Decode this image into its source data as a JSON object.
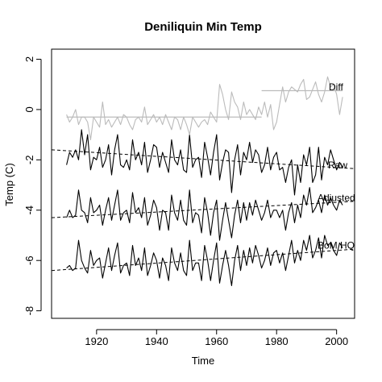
{
  "chart_data": {
    "type": "line",
    "title": "Deniliquin Min Temp",
    "xlabel": "Time",
    "ylabel": "Temp (C)",
    "xlim": [
      1905,
      2006
    ],
    "ylim": [
      -8.3,
      2.4
    ],
    "xticks": [
      1920,
      1940,
      1960,
      1980,
      2000
    ],
    "yticks": [
      -8,
      -6,
      -4,
      -2,
      0,
      2
    ],
    "grid": false,
    "legend": "none",
    "x_start": 1910,
    "x_end": 2002,
    "series": [
      {
        "name": "Raw",
        "color": "#000000",
        "values": [
          -2.2,
          -1.7,
          -1.9,
          -1.6,
          -2.0,
          -0.8,
          -1.8,
          -1.0,
          -2.4,
          -1.9,
          -2.0,
          -1.5,
          -2.3,
          -2.0,
          -1.4,
          -2.6,
          -1.6,
          -1.0,
          -2.2,
          -2.3,
          -2.0,
          -2.4,
          -1.2,
          -2.0,
          -1.7,
          -2.2,
          -1.3,
          -2.5,
          -2.0,
          -1.4,
          -1.5,
          -2.3,
          -1.7,
          -2.1,
          -2.5,
          -1.2,
          -2.0,
          -2.2,
          -1.6,
          -2.4,
          -2.5,
          -1.0,
          -2.3,
          -2.0,
          -1.9,
          -2.7,
          -1.3,
          -1.9,
          -2.6,
          -1.7,
          -1.0,
          -2.8,
          -2.1,
          -1.6,
          -1.7,
          -3.3,
          -2.0,
          -1.4,
          -2.6,
          -1.7,
          -2.0,
          -1.3,
          -2.1,
          -1.6,
          -1.8,
          -2.5,
          -2.2,
          -1.5,
          -2.4,
          -1.9,
          -1.7,
          -2.4,
          -2.3,
          -2.9,
          -2.3,
          -2.0,
          -3.4,
          -2.2,
          -2.9,
          -1.8,
          -2.2,
          -1.5,
          -2.9,
          -2.6,
          -1.5,
          -2.8,
          -1.9,
          -2.2,
          -1.6,
          -2.0,
          -2.4,
          -2.1,
          -2.3
        ],
        "trend": [
          -1.6,
          -2.35
        ]
      },
      {
        "name": "Adjusted",
        "color": "#000000",
        "values": [
          -4.3,
          -4.0,
          -4.3,
          -4.2,
          -3.2,
          -4.0,
          -4.1,
          -4.5,
          -3.5,
          -4.1,
          -4.0,
          -3.8,
          -4.6,
          -4.0,
          -3.5,
          -4.4,
          -3.8,
          -3.2,
          -4.4,
          -4.1,
          -4.0,
          -4.5,
          -3.3,
          -4.1,
          -3.9,
          -4.3,
          -3.5,
          -4.6,
          -4.2,
          -3.6,
          -3.9,
          -4.8,
          -4.0,
          -4.1,
          -4.8,
          -3.4,
          -4.1,
          -4.4,
          -3.6,
          -4.4,
          -4.6,
          -3.2,
          -4.5,
          -4.1,
          -4.2,
          -4.9,
          -3.5,
          -4.1,
          -5.0,
          -4.1,
          -3.6,
          -5.2,
          -4.4,
          -3.7,
          -4.4,
          -5.1,
          -4.2,
          -3.6,
          -4.5,
          -3.7,
          -4.4,
          -3.7,
          -4.2,
          -3.6,
          -4.0,
          -4.4,
          -4.1,
          -3.6,
          -4.3,
          -4.0,
          -4.0,
          -4.3,
          -4.0,
          -4.8,
          -4.1,
          -3.7,
          -4.5,
          -3.8,
          -4.3,
          -3.4,
          -3.8,
          -3.1,
          -4.1,
          -3.9,
          -3.6,
          -4.1,
          -3.4,
          -3.8,
          -3.5,
          -3.8,
          -4.0,
          -3.6,
          -3.8
        ],
        "trend": [
          -4.3,
          -3.65
        ]
      },
      {
        "name": "BoM HQ",
        "color": "#000000",
        "values": [
          -6.3,
          -6.2,
          -6.4,
          -6.3,
          -5.2,
          -6.0,
          -6.3,
          -6.5,
          -5.6,
          -6.2,
          -6.0,
          -5.9,
          -6.7,
          -6.1,
          -5.5,
          -6.4,
          -5.8,
          -5.3,
          -6.5,
          -6.2,
          -6.1,
          -6.6,
          -5.4,
          -6.2,
          -5.9,
          -6.4,
          -5.5,
          -6.6,
          -6.2,
          -5.7,
          -6.0,
          -6.7,
          -5.9,
          -6.2,
          -6.8,
          -5.5,
          -6.1,
          -6.4,
          -5.7,
          -6.4,
          -6.6,
          -5.2,
          -6.4,
          -6.1,
          -6.1,
          -6.8,
          -5.4,
          -6.0,
          -6.8,
          -6.0,
          -5.3,
          -6.9,
          -6.2,
          -5.6,
          -6.2,
          -7.0,
          -6.0,
          -5.4,
          -6.4,
          -5.6,
          -6.2,
          -5.5,
          -6.1,
          -5.4,
          -5.8,
          -6.3,
          -6.0,
          -5.5,
          -6.2,
          -5.7,
          -5.6,
          -6.1,
          -5.7,
          -6.4,
          -5.8,
          -5.2,
          -6.1,
          -5.6,
          -6.0,
          -5.2,
          -5.6,
          -5.0,
          -5.9,
          -5.6,
          -5.1,
          -5.9,
          -5.0,
          -5.4,
          -5.3,
          -5.6,
          -5.8,
          -5.3,
          -5.5
        ],
        "trend": [
          -6.4,
          -5.55
        ]
      },
      {
        "name": "Diff",
        "color": "#bbbbbb",
        "values": [
          -0.2,
          -0.5,
          -0.3,
          0.0,
          -0.6,
          -0.3,
          -0.3,
          -0.5,
          -1.2,
          -0.3,
          -0.5,
          -0.7,
          0.3,
          -0.6,
          -0.4,
          -0.7,
          -0.5,
          -0.3,
          -0.6,
          -0.2,
          -0.3,
          -0.6,
          -0.8,
          -0.4,
          -0.3,
          -0.5,
          0.1,
          -0.6,
          -0.4,
          -0.2,
          -0.5,
          -0.3,
          -0.6,
          -0.2,
          -0.5,
          -0.8,
          -0.3,
          -0.4,
          -0.8,
          -0.3,
          -0.6,
          -1.0,
          -0.3,
          -0.5,
          -0.7,
          -0.5,
          -0.4,
          -0.6,
          -0.1,
          -0.3,
          -0.5,
          1.0,
          0.6,
          0.0,
          -0.4,
          0.7,
          0.3,
          0.1,
          -0.4,
          0.3,
          -0.2,
          0.0,
          -0.2,
          -0.4,
          0.1,
          -0.2,
          0.3,
          -0.3,
          0.2,
          -0.8,
          -0.5,
          0.2,
          0.9,
          0.3,
          0.7,
          0.9,
          0.8,
          0.7,
          1.0,
          1.2,
          0.4,
          0.5,
          0.8,
          1.1,
          0.6,
          0.3,
          0.7,
          1.3,
          0.9,
          1.0,
          0.6,
          -0.2,
          0.5
        ],
        "steps": [
          {
            "x0": 1910,
            "x1": 1975,
            "y": -0.3
          },
          {
            "x0": 1975,
            "x1": 2002,
            "y": 0.75
          }
        ]
      }
    ]
  }
}
